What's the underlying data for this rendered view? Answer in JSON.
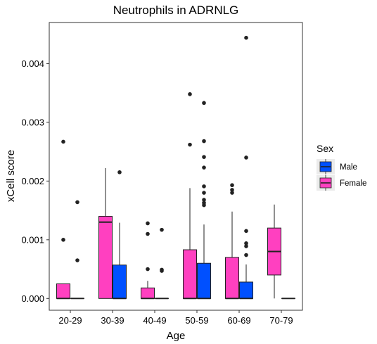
{
  "chart_data": {
    "type": "boxplot",
    "title": "Neutrophils in ADRNLG",
    "xlabel": "Age",
    "ylabel": "xCell score",
    "categories": [
      "20-29",
      "30-39",
      "40-49",
      "50-59",
      "60-69",
      "70-79"
    ],
    "ylim": [
      -0.0002,
      0.0047
    ],
    "yticks": [
      0.0,
      0.001,
      0.002,
      0.003,
      0.004
    ],
    "ytick_labels": [
      "0.000",
      "0.001",
      "0.002",
      "0.003",
      "0.004"
    ],
    "grid": false,
    "legend": {
      "title": "Sex",
      "position": "right",
      "entries": [
        "Male",
        "Female"
      ]
    },
    "series": [
      {
        "name": "Female",
        "color": "#ff40c0",
        "boxes": [
          {
            "category": "20-29",
            "q1": 0.0,
            "median": 0.0,
            "q3": 0.00025,
            "whisker_low": 0.0,
            "whisker_high": 0.00025,
            "outliers": [
              0.001,
              0.00267
            ]
          },
          {
            "category": "30-39",
            "q1": 0.0,
            "median": 0.0013,
            "q3": 0.0014,
            "whisker_low": 0.0,
            "whisker_high": 0.00222,
            "outliers": []
          },
          {
            "category": "40-49",
            "q1": 0.0,
            "median": 0.0,
            "q3": 0.00018,
            "whisker_low": 0.0,
            "whisker_high": 0.0003,
            "outliers": [
              0.0005,
              0.0011,
              0.00128
            ]
          },
          {
            "category": "50-59",
            "q1": 0.0,
            "median": 0.0,
            "q3": 0.00083,
            "whisker_low": 0.0,
            "whisker_high": 0.00188,
            "outliers": [
              0.00262,
              0.00348
            ]
          },
          {
            "category": "60-69",
            "q1": 0.0,
            "median": 0.0,
            "q3": 0.0007,
            "whisker_low": 0.0,
            "whisker_high": 0.00148,
            "outliers": [
              0.0018,
              0.00185,
              0.00193
            ]
          },
          {
            "category": "70-79",
            "q1": 0.0004,
            "median": 0.0008,
            "q3": 0.0012,
            "whisker_low": 0.0,
            "whisker_high": 0.0016,
            "outliers": []
          }
        ]
      },
      {
        "name": "Male",
        "color": "#0050ff",
        "boxes": [
          {
            "category": "20-29",
            "q1": 0.0,
            "median": 0.0,
            "q3": 0.0,
            "whisker_low": 0.0,
            "whisker_high": 0.0,
            "outliers": [
              0.00065,
              0.00164
            ]
          },
          {
            "category": "30-39",
            "q1": 0.0,
            "median": 0.0,
            "q3": 0.00057,
            "whisker_low": 0.0,
            "whisker_high": 0.00129,
            "outliers": [
              0.00215
            ]
          },
          {
            "category": "40-49",
            "q1": 0.0,
            "median": 0.0,
            "q3": 0.0,
            "whisker_low": 0.0,
            "whisker_high": 0.0,
            "outliers": [
              0.00047,
              0.00049,
              0.00117
            ]
          },
          {
            "category": "50-59",
            "q1": 0.0,
            "median": 0.0,
            "q3": 0.0006,
            "whisker_low": 0.0,
            "whisker_high": 0.00126,
            "outliers": [
              0.00159,
              0.00163,
              0.00168,
              0.0018,
              0.00191,
              0.00223,
              0.00241,
              0.00268,
              0.00333
            ]
          },
          {
            "category": "60-69",
            "q1": 0.0,
            "median": 0.0,
            "q3": 0.00028,
            "whisker_low": 0.0,
            "whisker_high": 0.00058,
            "outliers": [
              0.00074,
              0.00089,
              0.00094,
              0.00115,
              0.0024,
              0.00444
            ]
          },
          {
            "category": "70-79",
            "q1": 0.0,
            "median": 0.0,
            "q3": 0.0,
            "whisker_low": 0.0,
            "whisker_high": 0.0,
            "outliers": []
          }
        ]
      }
    ]
  }
}
